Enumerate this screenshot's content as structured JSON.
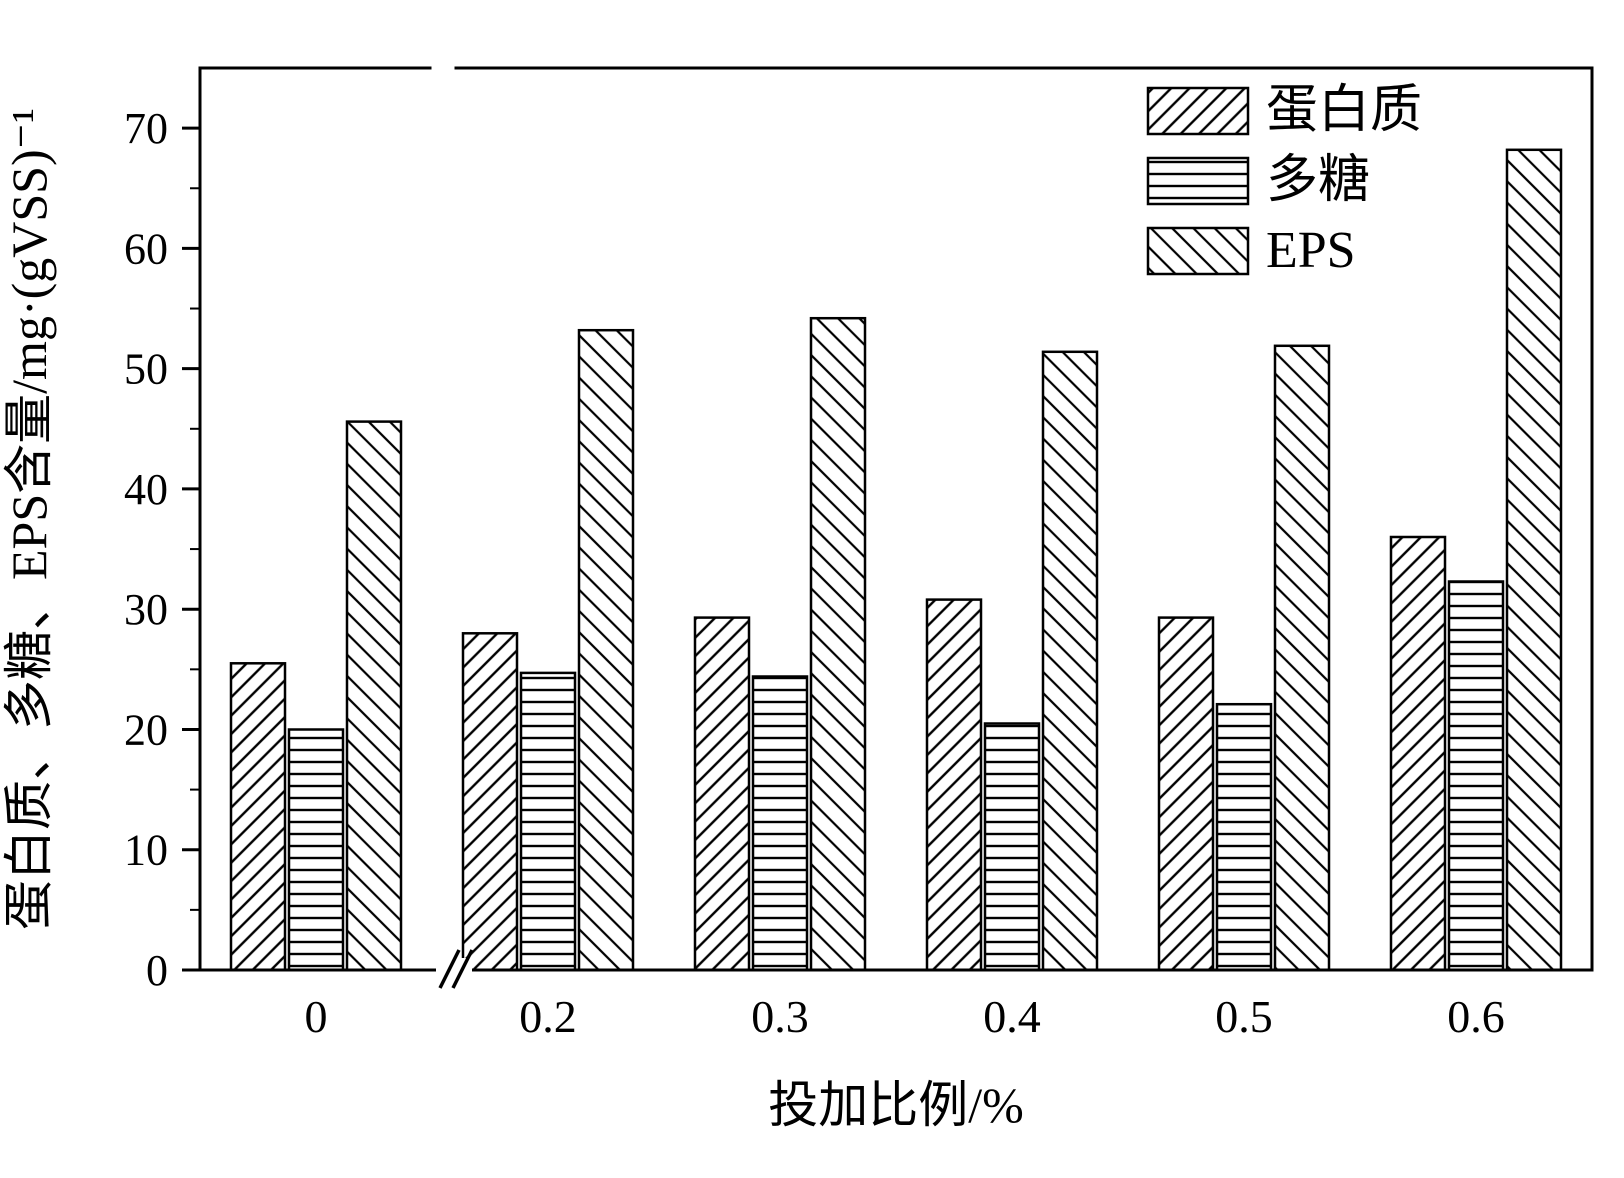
{
  "chart_data": {
    "type": "bar",
    "title": "",
    "xlabel": "投加比例/%",
    "ylabel": "蛋白质、多糖、EPS含量/mg·(gVSS)⁻¹",
    "categories": [
      "0",
      "0.2",
      "0.3",
      "0.4",
      "0.5",
      "0.6"
    ],
    "series": [
      {
        "name": "蛋白质",
        "hatch": "forward-diagonal",
        "values": [
          25.5,
          28.0,
          29.3,
          30.8,
          29.3,
          36.0
        ]
      },
      {
        "name": "多糖",
        "hatch": "horizontal",
        "values": [
          20.0,
          24.7,
          24.4,
          20.5,
          22.1,
          32.3
        ]
      },
      {
        "name": "EPS",
        "hatch": "back-diagonal",
        "values": [
          45.6,
          53.2,
          54.2,
          51.4,
          51.9,
          68.2
        ]
      }
    ],
    "ylim": [
      0,
      75
    ],
    "yticks": [
      0,
      10,
      20,
      30,
      40,
      50,
      60,
      70
    ],
    "minor_tick_step": 5,
    "axis_break_on_x": true,
    "legend_position": "top-right",
    "grid": false,
    "colors": {
      "stroke": "#000000",
      "background": "#ffffff"
    }
  }
}
